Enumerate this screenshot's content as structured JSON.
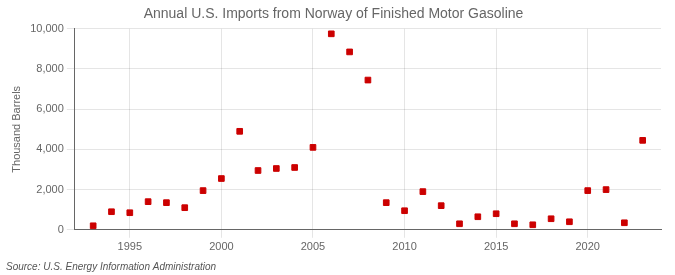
{
  "chart_data": {
    "type": "scatter",
    "title": "Annual U.S. Imports from Norway of Finished Motor Gasoline",
    "ylabel": "Thousand Barrels",
    "annotations": [
      "Source: U.S. Energy Information Administration"
    ],
    "x": [
      1993,
      1994,
      1995,
      1996,
      1997,
      1998,
      1999,
      2000,
      2001,
      2002,
      2003,
      2004,
      2005,
      2006,
      2007,
      2008,
      2009,
      2010,
      2011,
      2012,
      2013,
      2014,
      2015,
      2016,
      2017,
      2018,
      2019,
      2020,
      2021,
      2022,
      2023
    ],
    "values": [
      200,
      900,
      850,
      1400,
      1350,
      1100,
      1950,
      2550,
      4900,
      2950,
      3050,
      3100,
      4100,
      9750,
      8850,
      7450,
      1350,
      950,
      1900,
      1200,
      300,
      650,
      800,
      300,
      250,
      550,
      400,
      1950,
      2000,
      350,
      4450
    ],
    "color": "#cc0000",
    "marker": "square",
    "xlim": [
      1992,
      2024
    ],
    "xticks": [
      1995,
      2000,
      2005,
      2010,
      2015,
      2020
    ],
    "ylim": [
      0,
      10000
    ],
    "yticks": [
      0,
      {
        "value": 2000,
        "label": "2,000"
      },
      {
        "value": 4000,
        "label": "4,000"
      },
      {
        "value": 6000,
        "label": "6,000"
      },
      {
        "value": 8000,
        "label": "8,000"
      },
      {
        "value": 10000,
        "label": "10,000"
      }
    ],
    "grid": true
  }
}
